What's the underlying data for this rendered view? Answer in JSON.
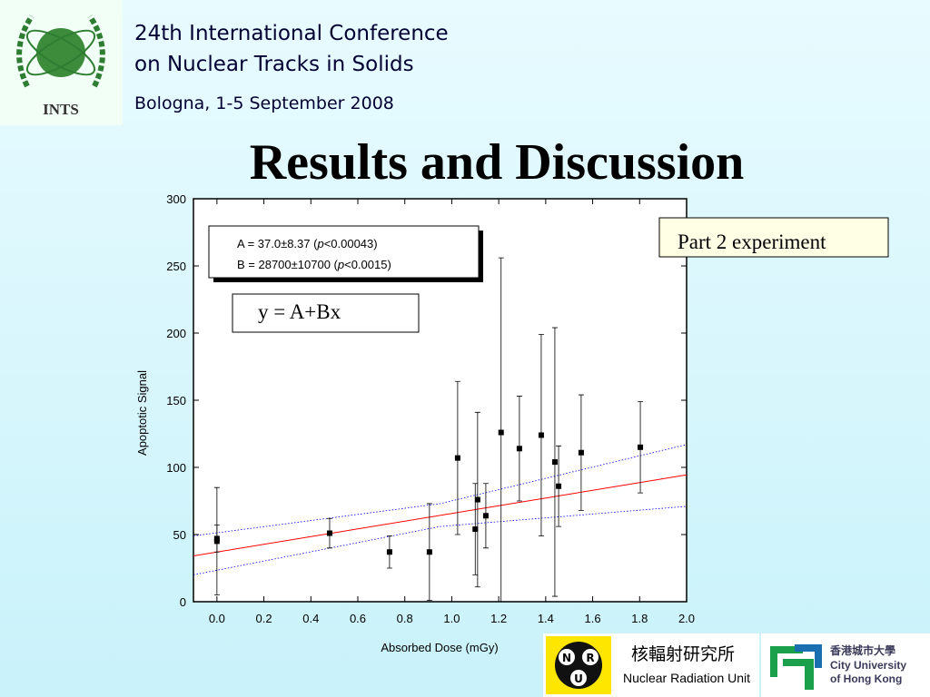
{
  "header": {
    "conference": [
      "24th International Conference",
      "on Nuclear Tracks in Solids"
    ],
    "venue": "Bologna, 1-5 September 2008",
    "title": "Results and Discussion"
  },
  "logos": {
    "ints": "INTS",
    "nru_letters": [
      "N",
      "R",
      "U"
    ],
    "nru_chinese": "核輻射研究所",
    "nru_english": "Nuclear Radiation Unit",
    "cityu_chinese": "香港城市大學",
    "cityu_english": [
      "City University",
      "of Hong Kong"
    ]
  },
  "chart_data": {
    "type": "scatter",
    "x_label": "Absorbed Dose (mGy)",
    "y_label": "Apoptotic Signal",
    "xlim": [
      -0.1,
      2.0
    ],
    "ylim": [
      0,
      300
    ],
    "xticks": [
      {
        "value": 0,
        "label": "0.0"
      },
      {
        "value": 0.2,
        "label": "0.2"
      },
      {
        "value": 0.4,
        "label": "0.4"
      },
      {
        "value": 0.6,
        "label": "0.6"
      },
      {
        "value": 0.8,
        "label": "0.8"
      },
      {
        "value": 1,
        "label": "1.0"
      },
      {
        "value": 1.2,
        "label": "1.2"
      },
      {
        "value": 1.4,
        "label": "1.4"
      },
      {
        "value": 1.6,
        "label": "1.6"
      },
      {
        "value": 1.8,
        "label": "1.8"
      },
      {
        "value": 2,
        "label": "2.0"
      }
    ],
    "yticks": [
      0,
      50,
      100,
      150,
      200,
      250,
      300
    ],
    "series": [
      {
        "color": "#000000",
        "x": [
          0.0,
          0.0,
          0.48,
          0.735,
          0.905,
          1.025,
          1.1,
          1.11,
          1.145,
          1.21,
          1.288,
          1.381,
          1.439,
          1.455,
          1.551,
          1.803
        ],
        "y": [
          47,
          45,
          51,
          37,
          37,
          107,
          54,
          76,
          64,
          126,
          114,
          124,
          104,
          86,
          111,
          115
        ],
        "error": [
          10,
          40,
          11,
          12,
          36,
          57,
          34,
          65,
          24,
          130,
          39,
          75,
          100,
          30,
          43,
          34
        ]
      }
    ],
    "fit": {
      "intercept": 37.0,
      "slope": 28.7,
      "color": "#ff0000"
    },
    "confidence_band": {
      "x": [
        -0.1,
        0.95,
        2.0
      ],
      "upper": [
        49,
        73,
        117
      ],
      "lower": [
        20,
        56,
        71
      ],
      "color": "#0000ff"
    },
    "fit_parameters": [
      [
        "A = 37.0±8.37 (",
        "p",
        "<0.00043)"
      ],
      [
        "B = 28700±10700 (",
        "p",
        "<0.0015)"
      ]
    ],
    "model": "y = A+Bx",
    "annotation": "Part 2 experiment"
  }
}
